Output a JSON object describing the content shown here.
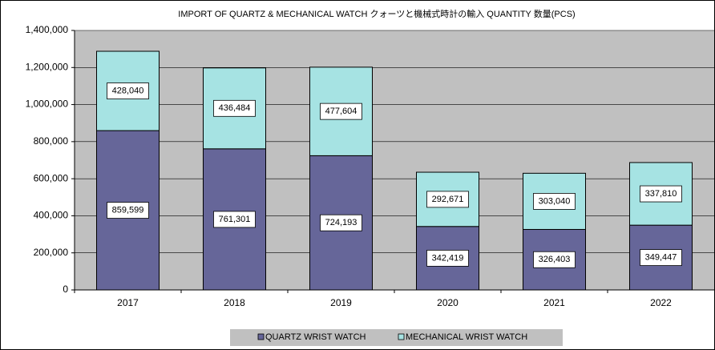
{
  "chart_data": {
    "type": "stacked_bar",
    "title": "IMPORT OF QUARTZ & MECHANICAL WATCH クォーツと機械式時計の輸入 QUANTITY  数量(PCS)",
    "categories": [
      "2017",
      "2018",
      "2019",
      "2020",
      "2021",
      "2022"
    ],
    "series": [
      {
        "name": "QUARTZ WRIST WATCH",
        "color": "#666699",
        "values": [
          859599,
          761301,
          724193,
          342419,
          326403,
          349447
        ],
        "value_labels": [
          "859,599",
          "761,301",
          "724,193",
          "342,419",
          "326,403",
          "349,447"
        ]
      },
      {
        "name": "MECHANICAL WRIST WATCH",
        "color": "#a6e3e3",
        "values": [
          428040,
          436484,
          477604,
          292671,
          303040,
          337810
        ],
        "value_labels": [
          "428,040",
          "436,484",
          "477,604",
          "292,671",
          "303,040",
          "337,810"
        ]
      }
    ],
    "ylim": [
      0,
      1400000
    ],
    "yticks": [
      {
        "value": 0,
        "label": "0"
      },
      {
        "value": 200000,
        "label": "200,000"
      },
      {
        "value": 400000,
        "label": "400,000"
      },
      {
        "value": 600000,
        "label": "600,000"
      },
      {
        "value": 800000,
        "label": "800,000"
      },
      {
        "value": 1000000,
        "label": "1,000,000"
      },
      {
        "value": 1200000,
        "label": "1,200,000"
      },
      {
        "value": 1400000,
        "label": "1,400,000"
      }
    ],
    "grid": true,
    "legend": "bottom"
  }
}
